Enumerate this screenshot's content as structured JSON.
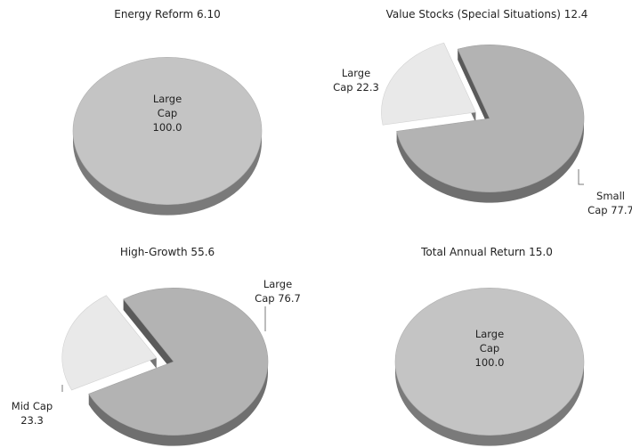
{
  "chart_data": [
    {
      "type": "pie",
      "title": "Energy Reform 6.10",
      "slices": [
        {
          "label_lines": [
            "Large",
            "Cap",
            "100.0"
          ],
          "value": 100.0,
          "exploded": false,
          "color": "#c4c4c4"
        }
      ]
    },
    {
      "type": "pie",
      "title": "Value Stocks (Special Situations) 12.4",
      "slices": [
        {
          "label_lines": [
            "Large",
            "Cap 22.3"
          ],
          "value": 22.3,
          "exploded": true,
          "color": "#e9e9e9"
        },
        {
          "label_lines": [
            "Small",
            "Cap 77.7"
          ],
          "value": 77.7,
          "exploded": false,
          "color": "#b3b3b3"
        }
      ]
    },
    {
      "type": "pie",
      "title": "High-Growth 55.6",
      "slices": [
        {
          "label_lines": [
            "Mid Cap",
            "23.3"
          ],
          "value": 23.3,
          "exploded": true,
          "color": "#e9e9e9"
        },
        {
          "label_lines": [
            "Large",
            "Cap 76.7"
          ],
          "value": 76.7,
          "exploded": false,
          "color": "#b3b3b3"
        }
      ]
    },
    {
      "type": "pie",
      "title": "Total Annual Return 15.0",
      "slices": [
        {
          "label_lines": [
            "Large",
            "Cap",
            "100.0"
          ],
          "value": 100.0,
          "exploded": false,
          "color": "#c4c4c4"
        }
      ]
    }
  ]
}
